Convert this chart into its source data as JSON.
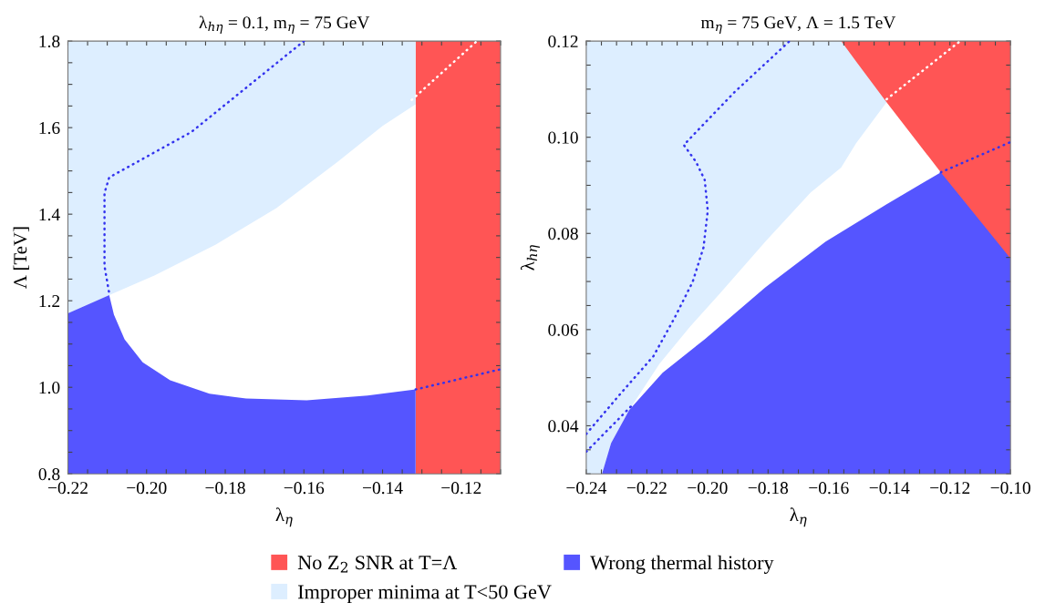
{
  "chart_data": [
    {
      "type": "area",
      "title": "λ$_{hη}$ = 0.1, m$_{η}$ = 75 GeV",
      "xlabel": "λ$_{η}$",
      "ylabel": "Λ [TeV]",
      "legend": "bottom",
      "xlim": [
        -0.22,
        -0.11
      ],
      "ylim": [
        0.8,
        1.8
      ],
      "xticks": [
        {
          "value": -0.22,
          "label": "−0.22"
        },
        {
          "value": -0.215,
          "label": null
        },
        {
          "value": -0.21,
          "label": null
        },
        {
          "value": -0.205,
          "label": null
        },
        {
          "value": -0.2,
          "label": "−0.20"
        },
        {
          "value": -0.195,
          "label": null
        },
        {
          "value": -0.19,
          "label": null
        },
        {
          "value": -0.185,
          "label": null
        },
        {
          "value": -0.18,
          "label": "−0.18"
        },
        {
          "value": -0.175,
          "label": null
        },
        {
          "value": -0.17,
          "label": null
        },
        {
          "value": -0.165,
          "label": null
        },
        {
          "value": -0.16,
          "label": "−0.16"
        },
        {
          "value": -0.155,
          "label": null
        },
        {
          "value": -0.15,
          "label": null
        },
        {
          "value": -0.145,
          "label": null
        },
        {
          "value": -0.14,
          "label": "−0.14"
        },
        {
          "value": -0.135,
          "label": null
        },
        {
          "value": -0.13,
          "label": null
        },
        {
          "value": -0.125,
          "label": null
        },
        {
          "value": -0.12,
          "label": "−0.12"
        },
        {
          "value": -0.115,
          "label": null
        },
        {
          "value": -0.11,
          "label": null
        }
      ],
      "yticks": [
        {
          "value": 0.8,
          "label": "0.8"
        },
        {
          "value": 0.85,
          "label": null
        },
        {
          "value": 0.9,
          "label": null
        },
        {
          "value": 0.95,
          "label": null
        },
        {
          "value": 1.0,
          "label": "1.0"
        },
        {
          "value": 1.05,
          "label": null
        },
        {
          "value": 1.1,
          "label": null
        },
        {
          "value": 1.15,
          "label": null
        },
        {
          "value": 1.2,
          "label": "1.2"
        },
        {
          "value": 1.25,
          "label": null
        },
        {
          "value": 1.3,
          "label": null
        },
        {
          "value": 1.35,
          "label": null
        },
        {
          "value": 1.4,
          "label": "1.4"
        },
        {
          "value": 1.45,
          "label": null
        },
        {
          "value": 1.5,
          "label": null
        },
        {
          "value": 1.55,
          "label": null
        },
        {
          "value": 1.6,
          "label": "1.6"
        },
        {
          "value": 1.65,
          "label": null
        },
        {
          "value": 1.7,
          "label": null
        },
        {
          "value": 1.75,
          "label": null
        },
        {
          "value": 1.8,
          "label": "1.8"
        }
      ],
      "series": [
        {
          "name": "No Z$_{2}$ SNR at T=Λ",
          "color": "#ff5555",
          "x": [
            -0.1316,
            -0.11
          ],
          "values": [
            1.8,
            1.8
          ]
        },
        {
          "name": "Improper minima at T<50 GeV",
          "color": "#ddeeff",
          "x": [
            -0.22,
            -0.1316
          ],
          "values": [
            1.8,
            1.8
          ]
        },
        {
          "color": "#ffffff",
          "x": [
            -0.22,
            -0.2095,
            -0.1979,
            -0.1824,
            -0.167,
            -0.1516,
            -0.14,
            -0.1316
          ],
          "values": [
            1.171,
            1.213,
            1.259,
            1.33,
            1.414,
            1.52,
            1.604,
            1.654
          ]
        },
        {
          "name": "Wrong thermal history",
          "color": "#5555ff",
          "x": [
            -0.22,
            -0.2095,
            -0.2083,
            -0.2056,
            -0.201,
            -0.194,
            -0.184,
            -0.1747,
            -0.1593,
            -0.1438,
            -0.1316
          ],
          "values": [
            1.171,
            1.213,
            1.168,
            1.111,
            1.058,
            1.016,
            0.985,
            0.974,
            0.97,
            0.981,
            0.995
          ]
        },
        {
          "type": "line",
          "line_style": "dotted",
          "color": "#3333ee",
          "x": [
            -0.16,
            -0.1886,
            -0.2095,
            -0.2107,
            -0.2107,
            -0.2095
          ],
          "values": [
            1.8,
            1.59,
            1.485,
            1.449,
            1.28,
            1.217
          ]
        },
        {
          "type": "line",
          "line_style": "dotted",
          "color": "#3333ee",
          "x": [
            -0.1316,
            -0.1103
          ],
          "values": [
            0.995,
            1.041
          ]
        },
        {
          "type": "line",
          "line_style": "dotted",
          "color": "#ffffff",
          "x": [
            -0.1326,
            -0.116
          ],
          "values": [
            1.664,
            1.8
          ]
        }
      ]
    },
    {
      "type": "area",
      "title": "m$_{η}$ = 75 GeV, Λ = 1.5 TeV",
      "xlabel": "λ$_{η}$",
      "ylabel": "λ$_{hη}$",
      "xlim": [
        -0.24,
        -0.1
      ],
      "ylim": [
        0.03,
        0.12
      ],
      "xticks": [
        {
          "value": -0.24,
          "label": "−0.24"
        },
        {
          "value": -0.235,
          "label": null
        },
        {
          "value": -0.23,
          "label": null
        },
        {
          "value": -0.225,
          "label": null
        },
        {
          "value": -0.22,
          "label": "−0.22"
        },
        {
          "value": -0.215,
          "label": null
        },
        {
          "value": -0.21,
          "label": null
        },
        {
          "value": -0.205,
          "label": null
        },
        {
          "value": -0.2,
          "label": "−0.20"
        },
        {
          "value": -0.195,
          "label": null
        },
        {
          "value": -0.19,
          "label": null
        },
        {
          "value": -0.185,
          "label": null
        },
        {
          "value": -0.18,
          "label": "−0.18"
        },
        {
          "value": -0.175,
          "label": null
        },
        {
          "value": -0.17,
          "label": null
        },
        {
          "value": -0.165,
          "label": null
        },
        {
          "value": -0.16,
          "label": "−0.16"
        },
        {
          "value": -0.155,
          "label": null
        },
        {
          "value": -0.15,
          "label": null
        },
        {
          "value": -0.145,
          "label": null
        },
        {
          "value": -0.14,
          "label": "−0.14"
        },
        {
          "value": -0.135,
          "label": null
        },
        {
          "value": -0.13,
          "label": null
        },
        {
          "value": -0.125,
          "label": null
        },
        {
          "value": -0.12,
          "label": "−0.12"
        },
        {
          "value": -0.115,
          "label": null
        },
        {
          "value": -0.11,
          "label": null
        },
        {
          "value": -0.105,
          "label": null
        },
        {
          "value": -0.1,
          "label": "−0.10"
        }
      ],
      "yticks": [
        {
          "value": 0.03,
          "label": null
        },
        {
          "value": 0.035,
          "label": null
        },
        {
          "value": 0.04,
          "label": "0.04"
        },
        {
          "value": 0.045,
          "label": null
        },
        {
          "value": 0.05,
          "label": null
        },
        {
          "value": 0.055,
          "label": null
        },
        {
          "value": 0.06,
          "label": "0.06"
        },
        {
          "value": 0.065,
          "label": null
        },
        {
          "value": 0.07,
          "label": null
        },
        {
          "value": 0.075,
          "label": null
        },
        {
          "value": 0.08,
          "label": "0.08"
        },
        {
          "value": 0.085,
          "label": null
        },
        {
          "value": 0.09,
          "label": null
        },
        {
          "value": 0.095,
          "label": null
        },
        {
          "value": 0.1,
          "label": "0.10"
        },
        {
          "value": 0.105,
          "label": null
        },
        {
          "value": 0.11,
          "label": null
        },
        {
          "value": 0.115,
          "label": null
        },
        {
          "value": 0.12,
          "label": "0.12"
        }
      ],
      "series": [
        {
          "color": "#ff5555",
          "x": [
            -0.1559,
            -0.1
          ],
          "values": [
            0.12,
            0.12
          ]
        },
        {
          "color": "#ddeeff",
          "x": [
            -0.24,
            -0.1559,
            -0.151,
            -0.1409
          ],
          "values": [
            0.12,
            0.12,
            0.1158,
            0.1073
          ]
        },
        {
          "color": "#ffffff",
          "x": [
            -0.2348,
            -0.2318,
            -0.2258,
            -0.2158,
            -0.2059,
            -0.1959,
            -0.1809,
            -0.166,
            -0.1559,
            -0.151,
            -0.1409,
            -0.123
          ],
          "values": [
            0.03,
            0.0364,
            0.0433,
            0.0529,
            0.0605,
            0.0675,
            0.0783,
            0.0885,
            0.0937,
            0.0987,
            0.1073,
            0.0927
          ]
        },
        {
          "color": "#5555ff",
          "x": [
            -0.2348,
            -0.2318,
            -0.2258,
            -0.2148,
            -0.2009,
            -0.1809,
            -0.161,
            -0.141,
            -0.123,
            -0.1
          ],
          "values": [
            0.03,
            0.0364,
            0.0433,
            0.051,
            0.058,
            0.0688,
            0.0783,
            0.086,
            0.0927,
            0.0748
          ]
        },
        {
          "type": "line",
          "line_style": "dotted",
          "color": "#3333ee",
          "x": [
            -0.24,
            -0.2288,
            -0.2178,
            -0.2108,
            -0.2049,
            -0.2013,
            -0.1999,
            -0.2009,
            -0.2038,
            -0.2078,
            -0.1909,
            -0.1729
          ],
          "values": [
            0.0383,
            0.0466,
            0.0545,
            0.0625,
            0.0699,
            0.0771,
            0.0847,
            0.0911,
            0.0949,
            0.0984,
            0.1095,
            0.12
          ]
        },
        {
          "type": "line",
          "line_style": "dotted",
          "color": "#3333ee",
          "x": [
            -0.24,
            -0.2248
          ],
          "values": [
            0.0346,
            0.0443
          ]
        },
        {
          "type": "line",
          "line_style": "dotted",
          "color": "#3333ee",
          "x": [
            -0.123,
            -0.1
          ],
          "values": [
            0.0927,
            0.099
          ]
        },
        {
          "type": "line",
          "line_style": "dotted",
          "color": "#ffffff",
          "x": [
            -0.1409,
            -0.1166
          ],
          "values": [
            0.1079,
            0.12
          ]
        }
      ]
    }
  ]
}
